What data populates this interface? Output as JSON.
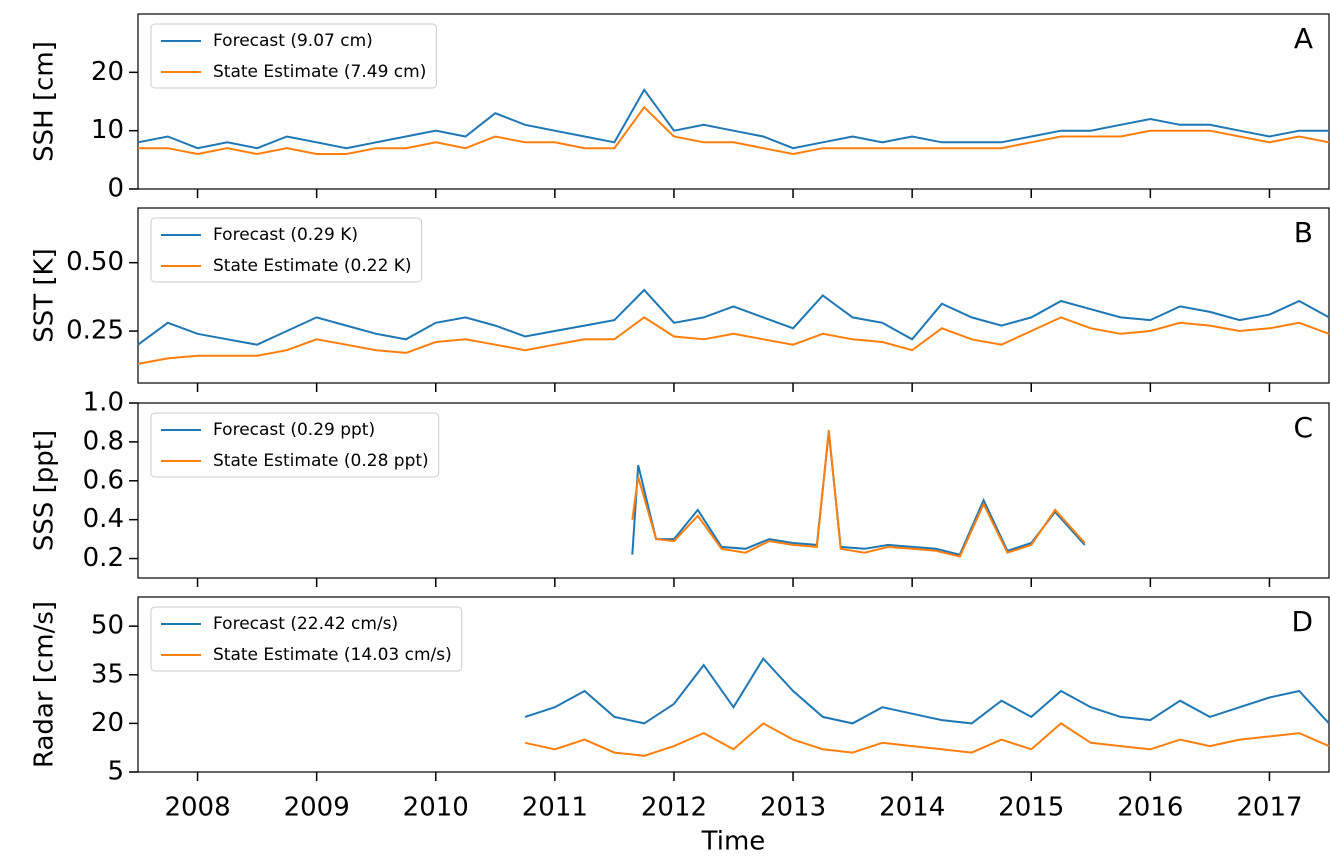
{
  "chart_data": [
    {
      "type": "line",
      "y_label": "SSH [cm]",
      "annotation": "A",
      "x": [
        2007.5,
        2007.75,
        2008.0,
        2008.25,
        2008.5,
        2008.75,
        2009.0,
        2009.25,
        2009.5,
        2009.75,
        2010.0,
        2010.25,
        2010.5,
        2010.75,
        2011.0,
        2011.25,
        2011.5,
        2011.75,
        2012.0,
        2012.25,
        2012.5,
        2012.75,
        2013.0,
        2013.25,
        2013.5,
        2013.75,
        2014.0,
        2014.25,
        2014.5,
        2014.75,
        2015.0,
        2015.25,
        2015.5,
        2015.75,
        2016.0,
        2016.25,
        2016.5,
        2016.75,
        2017.0,
        2017.25,
        2017.5
      ],
      "xlim": [
        2007.5,
        2017.5
      ],
      "xticks": [
        2008,
        2009,
        2010,
        2011,
        2012,
        2013,
        2014,
        2015,
        2016,
        2017
      ],
      "ylim": [
        0,
        30
      ],
      "yticks": [
        0,
        10,
        20
      ],
      "series": [
        {
          "name": "Forecast (9.07 cm)",
          "color": "#1f77b4",
          "values": [
            8,
            9,
            7,
            8,
            7,
            9,
            8,
            7,
            8,
            9,
            10,
            9,
            13,
            11,
            10,
            9,
            8,
            17,
            10,
            11,
            10,
            9,
            7,
            8,
            9,
            8,
            9,
            8,
            8,
            8,
            9,
            10,
            10,
            11,
            12,
            11,
            11,
            10,
            9,
            10,
            10
          ]
        },
        {
          "name": "State Estimate (7.49 cm)",
          "color": "#ff7f0e",
          "values": [
            7,
            7,
            6,
            7,
            6,
            7,
            6,
            6,
            7,
            7,
            8,
            7,
            9,
            8,
            8,
            7,
            7,
            14,
            9,
            8,
            8,
            7,
            6,
            7,
            7,
            7,
            7,
            7,
            7,
            7,
            8,
            9,
            9,
            9,
            10,
            10,
            10,
            9,
            8,
            9,
            8
          ]
        }
      ]
    },
    {
      "type": "line",
      "y_label": "SST [K]",
      "annotation": "B",
      "x": [
        2007.5,
        2007.75,
        2008.0,
        2008.25,
        2008.5,
        2008.75,
        2009.0,
        2009.25,
        2009.5,
        2009.75,
        2010.0,
        2010.25,
        2010.5,
        2010.75,
        2011.0,
        2011.25,
        2011.5,
        2011.75,
        2012.0,
        2012.25,
        2012.5,
        2012.75,
        2013.0,
        2013.25,
        2013.5,
        2013.75,
        2014.0,
        2014.25,
        2014.5,
        2014.75,
        2015.0,
        2015.25,
        2015.5,
        2015.75,
        2016.0,
        2016.25,
        2016.5,
        2016.75,
        2017.0,
        2017.25,
        2017.5
      ],
      "xlim": [
        2007.5,
        2017.5
      ],
      "xticks": [
        2008,
        2009,
        2010,
        2011,
        2012,
        2013,
        2014,
        2015,
        2016,
        2017
      ],
      "ylim": [
        0.06,
        0.7
      ],
      "yticks": [
        {
          "value": 0.25,
          "label": "0.25"
        },
        {
          "value": 0.5,
          "label": "0.50"
        }
      ],
      "series": [
        {
          "name": "Forecast (0.29 K)",
          "color": "#1f77b4",
          "values": [
            0.2,
            0.28,
            0.24,
            0.22,
            0.2,
            0.25,
            0.3,
            0.27,
            0.24,
            0.22,
            0.28,
            0.3,
            0.27,
            0.23,
            0.25,
            0.27,
            0.29,
            0.4,
            0.28,
            0.3,
            0.34,
            0.3,
            0.26,
            0.38,
            0.3,
            0.28,
            0.22,
            0.35,
            0.3,
            0.27,
            0.3,
            0.36,
            0.33,
            0.3,
            0.29,
            0.34,
            0.32,
            0.29,
            0.31,
            0.36,
            0.3
          ]
        },
        {
          "name": "State Estimate (0.22 K)",
          "color": "#ff7f0e",
          "values": [
            0.13,
            0.15,
            0.16,
            0.16,
            0.16,
            0.18,
            0.22,
            0.2,
            0.18,
            0.17,
            0.21,
            0.22,
            0.2,
            0.18,
            0.2,
            0.22,
            0.22,
            0.3,
            0.23,
            0.22,
            0.24,
            0.22,
            0.2,
            0.24,
            0.22,
            0.21,
            0.18,
            0.26,
            0.22,
            0.2,
            0.25,
            0.3,
            0.26,
            0.24,
            0.25,
            0.28,
            0.27,
            0.25,
            0.26,
            0.28,
            0.24
          ]
        }
      ]
    },
    {
      "type": "line",
      "y_label": "SSS [ppt]",
      "annotation": "C",
      "x": [
        2011.65,
        2011.7,
        2011.85,
        2012.0,
        2012.2,
        2012.4,
        2012.6,
        2012.8,
        2013.0,
        2013.2,
        2013.3,
        2013.4,
        2013.6,
        2013.8,
        2014.0,
        2014.2,
        2014.4,
        2014.6,
        2014.8,
        2015.0,
        2015.2,
        2015.45
      ],
      "xlim": [
        2007.5,
        2017.5
      ],
      "xticks": [
        2008,
        2009,
        2010,
        2011,
        2012,
        2013,
        2014,
        2015,
        2016,
        2017
      ],
      "ylim": [
        0.1,
        1.0
      ],
      "yticks": [
        0.2,
        0.4,
        0.6,
        0.8,
        {
          "value": 1.0,
          "label": "1.0"
        }
      ],
      "series": [
        {
          "name": "Forecast (0.29 ppt)",
          "color": "#1f77b4",
          "values": [
            0.22,
            0.68,
            0.3,
            0.3,
            0.45,
            0.26,
            0.25,
            0.3,
            0.28,
            0.27,
            0.85,
            0.26,
            0.25,
            0.27,
            0.26,
            0.25,
            0.22,
            0.5,
            0.24,
            0.28,
            0.44,
            0.27
          ]
        },
        {
          "name": "State Estimate (0.28 ppt)",
          "color": "#ff7f0e",
          "values": [
            0.4,
            0.62,
            0.3,
            0.29,
            0.42,
            0.25,
            0.23,
            0.29,
            0.27,
            0.26,
            0.86,
            0.25,
            0.23,
            0.26,
            0.25,
            0.24,
            0.21,
            0.48,
            0.23,
            0.27,
            0.45,
            0.28
          ]
        }
      ]
    },
    {
      "type": "line",
      "y_label": "Radar [cm/s]",
      "annotation": "D",
      "x_label": "Time",
      "x": [
        2010.75,
        2011.0,
        2011.25,
        2011.5,
        2011.75,
        2012.0,
        2012.25,
        2012.5,
        2012.75,
        2013.0,
        2013.25,
        2013.5,
        2013.75,
        2014.0,
        2014.25,
        2014.5,
        2014.75,
        2015.0,
        2015.25,
        2015.5,
        2015.75,
        2016.0,
        2016.25,
        2016.5,
        2016.75,
        2017.0,
        2017.25,
        2017.5
      ],
      "xlim": [
        2007.5,
        2017.5
      ],
      "xticks": [
        2008,
        2009,
        2010,
        2011,
        2012,
        2013,
        2014,
        2015,
        2016,
        2017
      ],
      "ylim": [
        5,
        59
      ],
      "yticks": [
        5,
        20,
        35,
        50
      ],
      "series": [
        {
          "name": "Forecast (22.42 cm/s)",
          "color": "#1f77b4",
          "values": [
            22,
            25,
            30,
            22,
            20,
            26,
            38,
            25,
            40,
            30,
            22,
            20,
            25,
            23,
            21,
            20,
            27,
            22,
            30,
            25,
            22,
            21,
            27,
            22,
            25,
            28,
            30,
            20
          ]
        },
        {
          "name": "State Estimate (14.03 cm/s)",
          "color": "#ff7f0e",
          "values": [
            14,
            12,
            15,
            11,
            10,
            13,
            17,
            12,
            20,
            15,
            12,
            11,
            14,
            13,
            12,
            11,
            15,
            12,
            20,
            14,
            13,
            12,
            15,
            13,
            15,
            16,
            17,
            13
          ]
        }
      ]
    }
  ]
}
